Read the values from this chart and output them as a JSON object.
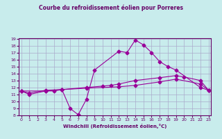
{
  "title": "Courbe du refroidissement éolien pour Porreres",
  "xlabel": "Windchill (Refroidissement éolien,°C)",
  "bg_color": "#c8ecec",
  "line_color": "#990099",
  "grid_color": "#aaaacc",
  "series": {
    "max": {
      "x": [
        0,
        1,
        3,
        4,
        5,
        6,
        7,
        8,
        9,
        12,
        13,
        14,
        15,
        16,
        17,
        18,
        19,
        22,
        23
      ],
      "y": [
        11.5,
        11.0,
        11.5,
        11.5,
        11.7,
        9.0,
        8.1,
        10.3,
        14.5,
        17.2,
        17.0,
        18.8,
        18.1,
        17.0,
        15.7,
        15.0,
        14.5,
        12.0,
        11.6
      ]
    },
    "mean": {
      "x": [
        0,
        1,
        3,
        5,
        8,
        10,
        11,
        12,
        14,
        17,
        19,
        20,
        22,
        23
      ],
      "y": [
        11.5,
        11.2,
        11.6,
        11.7,
        12.0,
        12.2,
        12.3,
        12.5,
        13.0,
        13.4,
        13.7,
        13.5,
        13.0,
        11.6
      ]
    },
    "min": {
      "x": [
        0,
        3,
        5,
        8,
        12,
        14,
        17,
        19,
        22,
        23
      ],
      "y": [
        11.5,
        11.5,
        11.7,
        11.9,
        12.1,
        12.3,
        12.8,
        13.2,
        12.5,
        11.6
      ]
    }
  },
  "ylim": [
    8,
    19
  ],
  "xlim": [
    0,
    23
  ],
  "yticks": [
    8,
    9,
    10,
    11,
    12,
    13,
    14,
    15,
    16,
    17,
    18,
    19
  ],
  "xticks": [
    0,
    1,
    2,
    3,
    4,
    5,
    6,
    7,
    8,
    9,
    10,
    11,
    12,
    13,
    14,
    15,
    16,
    17,
    18,
    19,
    20,
    21,
    22,
    23
  ]
}
